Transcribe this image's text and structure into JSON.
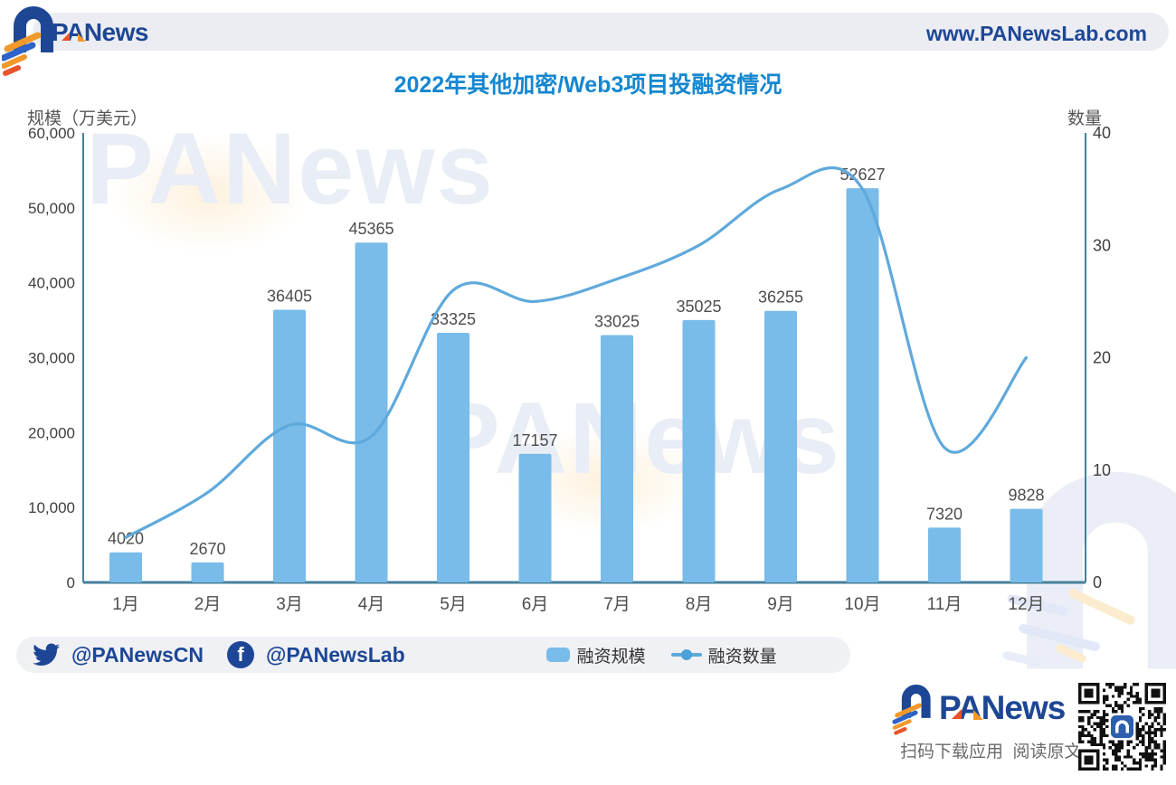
{
  "header": {
    "brand": "PANews",
    "website": "www.PANewsLab.com"
  },
  "chart_data": {
    "type": "bar+line",
    "title": "2022年其他加密/Web3项目投融资情况",
    "categories": [
      "1月",
      "2月",
      "3月",
      "4月",
      "5月",
      "6月",
      "7月",
      "8月",
      "9月",
      "10月",
      "11月",
      "12月"
    ],
    "series": [
      {
        "name": "融资规模",
        "type": "bar",
        "axis": "left",
        "values": [
          4020,
          2670,
          36405,
          45365,
          33325,
          17157,
          33025,
          35025,
          36255,
          52627,
          7320,
          9828
        ]
      },
      {
        "name": "融资数量",
        "type": "line",
        "axis": "right",
        "values": [
          4,
          8,
          14,
          13,
          26,
          25,
          27,
          30,
          35,
          35,
          12,
          20
        ]
      }
    ],
    "left_axis": {
      "label": "规模（万美元）",
      "min": 0,
      "max": 60000,
      "tick_labels": [
        "60,000",
        "50,000",
        "40,000",
        "30,000",
        "20,000",
        "10,000",
        "0"
      ],
      "tick_values": [
        60000,
        50000,
        40000,
        30000,
        20000,
        10000,
        0
      ]
    },
    "right_axis": {
      "label": "数量",
      "min": 0,
      "max": 40,
      "tick_labels": [
        "40",
        "30",
        "20",
        "10",
        "0"
      ],
      "tick_values": [
        40,
        30,
        20,
        10,
        0
      ]
    },
    "grid": false,
    "legend_position": "bottom",
    "colors": {
      "bar": "#79bbe9",
      "line": "#5fa9dc",
      "axis": "#46809b",
      "bar_label": "#4d4d4d",
      "tick_label": "#3f3f3f",
      "title": "#1487d0"
    }
  },
  "legend": {
    "bar_label": "融资规模",
    "line_label": "融资数量"
  },
  "footer": {
    "twitter_handle": "@PANewsCN",
    "facebook_handle": "@PANewsLab",
    "facebook_glyph": "f"
  },
  "promo": {
    "brand": "PANews",
    "caption": "扫码下载应用  阅读原文"
  },
  "watermark": {
    "text": "PANews"
  }
}
